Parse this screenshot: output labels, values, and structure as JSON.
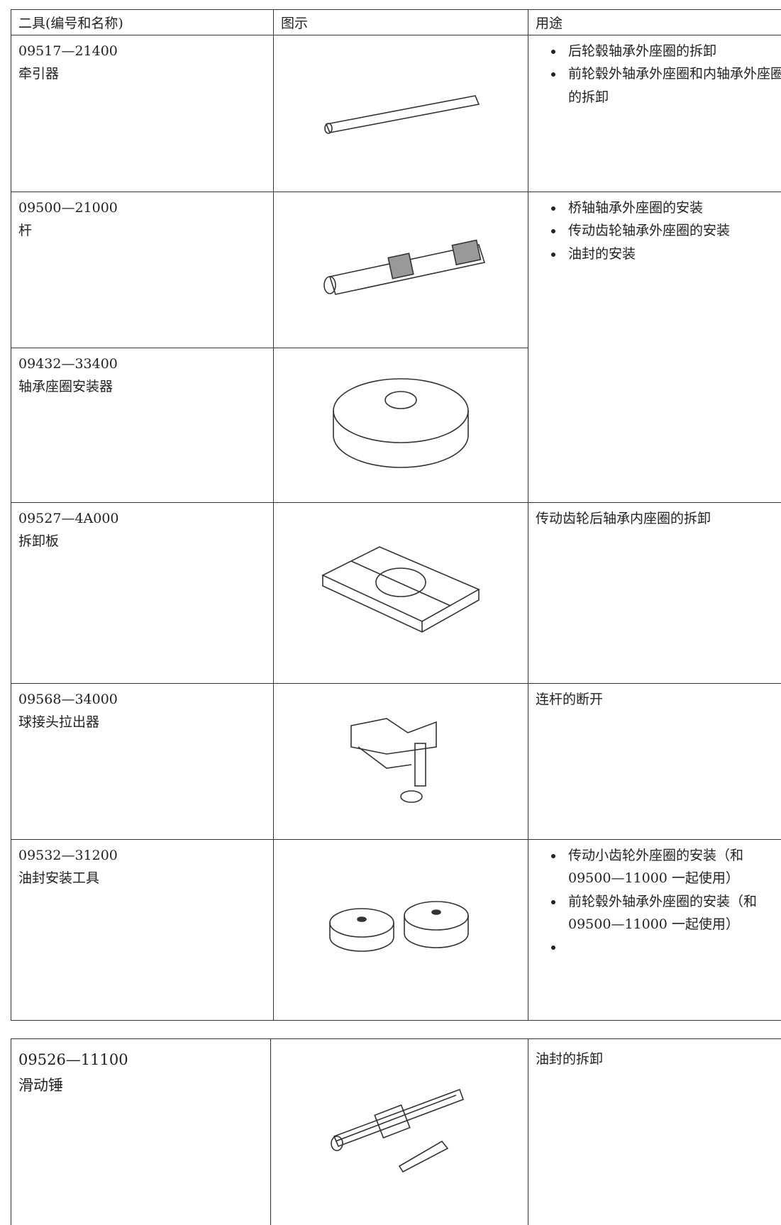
{
  "table": {
    "header": [
      "二具(编号和名称)",
      "图示",
      "用途"
    ],
    "rows": [
      {
        "code": "09517—21400",
        "name": "牵引器",
        "usage": [
          "后轮毂轴承外座圈的拆卸",
          "前轮毂外轴承外座圈和内轴承外座圈的拆卸"
        ]
      },
      {
        "code": "09500—21000",
        "name": "杆",
        "usage": [
          "桥轴轴承外座圈的安装",
          "传动齿轮轴承外座圈的安装",
          "油封的安装"
        ]
      },
      {
        "code": "09432—33400",
        "name": "轴承座圈安装器"
      },
      {
        "code": "09527—4A000",
        "name": "拆卸板",
        "usage_text": "传动齿轮后轴承内座圈的拆卸"
      },
      {
        "code": "09568—34000",
        "name": "球接头拉出器",
        "usage_text": "连杆的断开"
      },
      {
        "code": "09532—31200",
        "name": "油封安装工具",
        "usage": [
          "传动小齿轮外座圈的安装（和 09500—11000 一起使用）",
          "前轮毂外轴承外座圈的安装（和 09500—11000 一起使用）"
        ]
      }
    ]
  },
  "table2": {
    "rows": [
      {
        "code": "09526—11100",
        "name": "滑动锤",
        "usage_text": "油封的拆卸"
      }
    ]
  }
}
